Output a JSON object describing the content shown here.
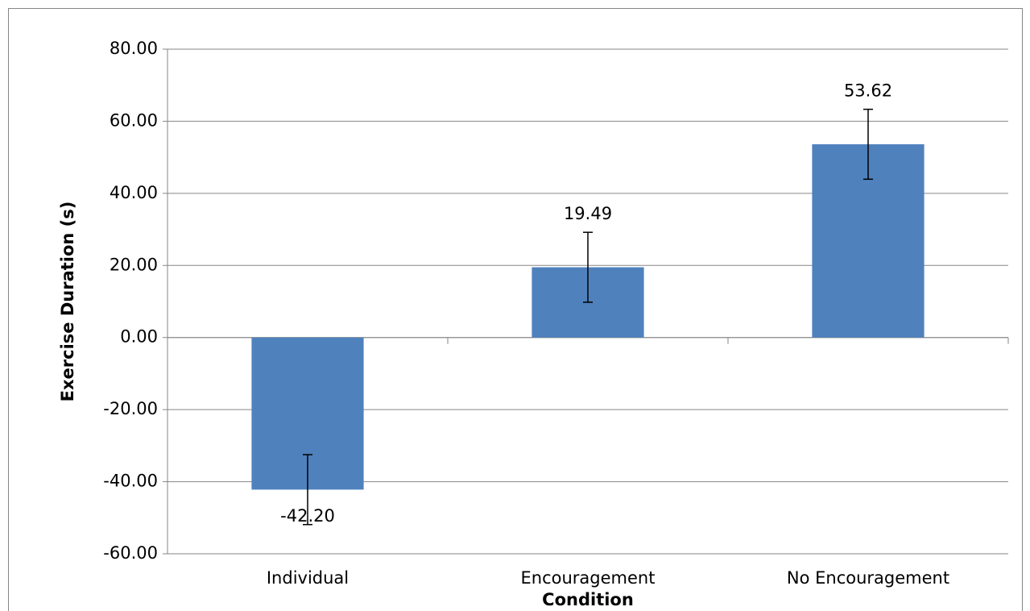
{
  "chart_data": {
    "type": "bar",
    "x_label": "Condition",
    "y_label": "Exercise Duration (s)",
    "categories": [
      "Individual",
      "Encouragement",
      "No Encouragement"
    ],
    "values": [
      -42.2,
      19.49,
      53.62
    ],
    "value_labels": [
      "-42.20",
      "19.49",
      "53.62"
    ],
    "errors": [
      9.7,
      9.7,
      9.7
    ],
    "color": "#4f81bd",
    "ylim": [
      -60,
      80
    ],
    "yticks": [
      {
        "value": -60,
        "label": "-60.00"
      },
      {
        "value": -40,
        "label": "-40.00"
      },
      {
        "value": -20,
        "label": "-20.00"
      },
      {
        "value": 0,
        "label": "0.00"
      },
      {
        "value": 20,
        "label": "20.00"
      },
      {
        "value": 40,
        "label": "40.00"
      },
      {
        "value": 60,
        "label": "60.00"
      },
      {
        "value": 80,
        "label": "80.00"
      }
    ],
    "grid": true
  }
}
